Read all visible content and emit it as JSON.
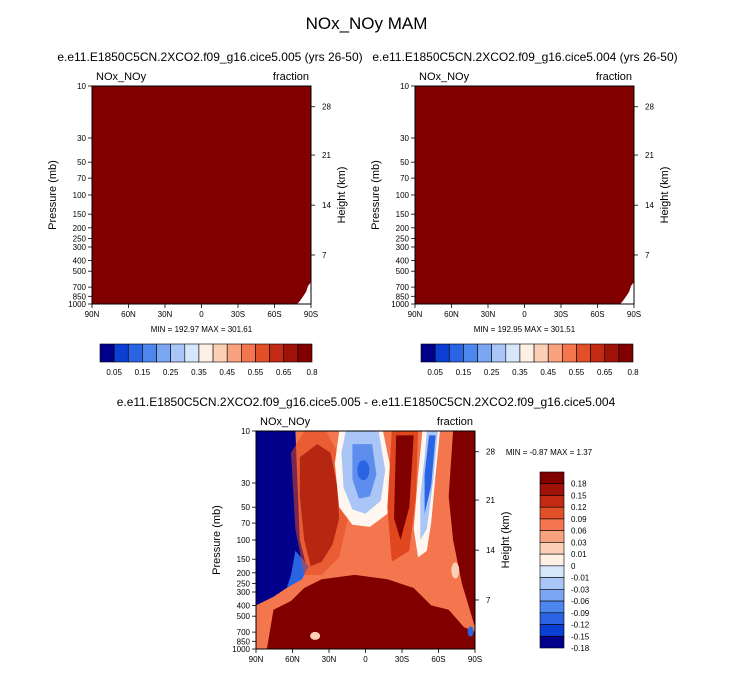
{
  "title": "NOx_NOy MAM",
  "chart_data": [
    {
      "type": "heatmap",
      "title": "e.e11.E1850C5CN.2XCO2.f09_g16.cice5.005 (yrs 26-50)",
      "left_label": "NOx_NOy",
      "right_label": "fraction",
      "ylabel": "Pressure (mb)",
      "ylabel_right": "Height (km)",
      "x_ticks": [
        "90N",
        "60N",
        "30N",
        "0",
        "30S",
        "60S",
        "90S"
      ],
      "y_ticks": [
        "10",
        "30",
        "50",
        "70",
        "100",
        "150",
        "200",
        "250",
        "300",
        "400",
        "500",
        "700",
        "850",
        "1000"
      ],
      "height_ticks": [
        "28",
        "21",
        "14",
        "7"
      ],
      "stats": "MIN = 192.97   MAX = 301.61",
      "colorbar_labels": [
        "0.05",
        "0.15",
        "0.25",
        "0.35",
        "0.45",
        "0.55",
        "0.65",
        "0.8"
      ],
      "fill_color": "#800000"
    },
    {
      "type": "heatmap",
      "title": "e.e11.E1850C5CN.2XCO2.f09_g16.cice5.004 (yrs 26-50)",
      "left_label": "NOx_NOy",
      "right_label": "fraction",
      "ylabel": "Pressure (mb)",
      "ylabel_right": "Height (km)",
      "x_ticks": [
        "90N",
        "60N",
        "30N",
        "0",
        "30S",
        "60S",
        "90S"
      ],
      "y_ticks": [
        "10",
        "30",
        "50",
        "70",
        "100",
        "150",
        "200",
        "250",
        "300",
        "400",
        "500",
        "700",
        "850",
        "1000"
      ],
      "height_ticks": [
        "28",
        "21",
        "14",
        "7"
      ],
      "stats": "MIN = 192.95   MAX = 301.51",
      "colorbar_labels": [
        "0.05",
        "0.15",
        "0.25",
        "0.35",
        "0.45",
        "0.55",
        "0.65",
        "0.8"
      ],
      "fill_color": "#800000"
    },
    {
      "type": "heatmap",
      "title": "e.e11.E1850C5CN.2XCO2.f09_g16.cice5.005 - e.e11.E1850C5CN.2XCO2.f09_g16.cice5.004",
      "left_label": "NOx_NOy",
      "right_label": "fraction",
      "ylabel": "Pressure (mb)",
      "ylabel_right": "Height (km)",
      "x_ticks": [
        "90N",
        "60N",
        "30N",
        "0",
        "30S",
        "60S",
        "90S"
      ],
      "y_ticks": [
        "10",
        "30",
        "50",
        "70",
        "100",
        "150",
        "200",
        "250",
        "300",
        "400",
        "500",
        "700",
        "850",
        "1000"
      ],
      "height_ticks": [
        "28",
        "21",
        "14",
        "7"
      ],
      "stats": "MIN =  -0.87   MAX =   1.37",
      "colorbar_labels": [
        "0.18",
        "0.15",
        "0.12",
        "0.09",
        "0.06",
        "0.03",
        "0.01",
        "0",
        "-0.01",
        "-0.03",
        "-0.06",
        "-0.09",
        "-0.12",
        "-0.15",
        "-0.18"
      ]
    }
  ],
  "colors": {
    "ramp": [
      "#00008b",
      "#0b3fd3",
      "#2a64e3",
      "#4d86ec",
      "#7aa6f2",
      "#a9c6f7",
      "#d6e6fb",
      "#fff0e6",
      "#fcd0b6",
      "#f9a27f",
      "#f3764f",
      "#e2502a",
      "#c32a13",
      "#9f1208",
      "#800000"
    ],
    "bg_blue": "#00008b",
    "dark_red": "#800000",
    "red": "#e0471f",
    "orange": "#f3764f",
    "light_red": "#fcd0b6",
    "pale": "#fff6f0",
    "light_blue": "#a9c6f7",
    "mid_blue": "#5d8eee",
    "blue": "#2a64e3",
    "axis": "#000000"
  }
}
